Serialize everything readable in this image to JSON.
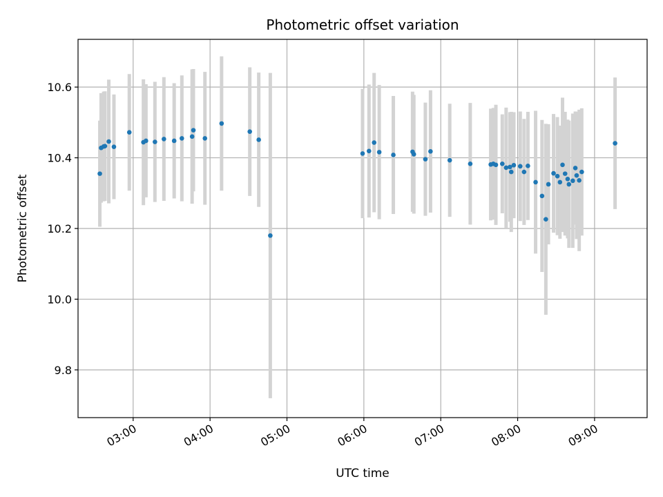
{
  "chart_data": {
    "type": "scatter",
    "title": "Photometric offset variation",
    "xlabel": "UTC time",
    "ylabel": "Photometric offset",
    "grid": true,
    "xlim": [
      "02:17",
      "09:41"
    ],
    "ylim": [
      9.665,
      10.735
    ],
    "x_ticks": [
      "03:00",
      "04:00",
      "05:00",
      "06:00",
      "07:00",
      "08:00",
      "09:00"
    ],
    "y_ticks": [
      9.8,
      10.0,
      10.2,
      10.4,
      10.6
    ],
    "y_tick_labels": [
      "9.8",
      "10.0",
      "10.2",
      "10.4",
      "10.6"
    ],
    "colors": {
      "points": "#1f77b4",
      "errorbars": "#d3d3d3",
      "grid": "#b0b0b0"
    },
    "series": [
      {
        "x": [
          "02:34",
          "02:35",
          "02:37",
          "02:38",
          "02:41",
          "02:45",
          "02:57",
          "03:08",
          "03:10",
          "03:17",
          "03:24",
          "03:32",
          "03:38",
          "03:46",
          "03:47",
          "03:56",
          "04:09",
          "04:31",
          "04:38",
          "04:47",
          "05:59",
          "06:04",
          "06:08",
          "06:12",
          "06:23",
          "06:38",
          "06:39",
          "06:48",
          "06:52",
          "07:07",
          "07:23",
          "07:39",
          "07:41",
          "07:43",
          "07:48",
          "07:51",
          "07:54",
          "07:55",
          "07:57",
          "08:02",
          "08:05",
          "08:08",
          "08:14",
          "08:19",
          "08:22",
          "08:24",
          "08:28",
          "08:31",
          "08:33",
          "08:35",
          "08:37",
          "08:39",
          "08:40",
          "08:43",
          "08:45",
          "08:46",
          "08:48",
          "08:50",
          "09:16"
        ],
        "y": [
          10.355,
          10.428,
          10.432,
          10.433,
          10.446,
          10.431,
          10.472,
          10.444,
          10.448,
          10.445,
          10.453,
          10.448,
          10.455,
          10.46,
          10.478,
          10.455,
          10.497,
          10.474,
          10.451,
          10.18,
          10.412,
          10.419,
          10.443,
          10.416,
          10.408,
          10.417,
          10.41,
          10.396,
          10.418,
          10.393,
          10.383,
          10.381,
          10.383,
          10.38,
          10.383,
          10.372,
          10.374,
          10.36,
          10.379,
          10.376,
          10.36,
          10.377,
          10.331,
          10.292,
          10.226,
          10.325,
          10.356,
          10.348,
          10.331,
          10.38,
          10.355,
          10.34,
          10.325,
          10.335,
          10.371,
          10.35,
          10.336,
          10.36,
          10.441
        ],
        "yerr": [
          0.15,
          0.155,
          0.155,
          0.155,
          0.175,
          0.148,
          0.165,
          0.178,
          0.16,
          0.17,
          0.175,
          0.163,
          0.178,
          0.19,
          0.173,
          0.188,
          0.19,
          0.182,
          0.19,
          0.46,
          0.183,
          0.188,
          0.197,
          0.19,
          0.167,
          0.17,
          0.168,
          0.16,
          0.173,
          0.16,
          0.172,
          0.158,
          0.158,
          0.17,
          0.14,
          0.17,
          0.155,
          0.17,
          0.15,
          0.155,
          0.15,
          0.153,
          0.202,
          0.215,
          0.27,
          0.17,
          0.168,
          0.167,
          0.16,
          0.19,
          0.175,
          0.168,
          0.18,
          0.19,
          0.16,
          0.18,
          0.2,
          0.18,
          0.186
        ]
      }
    ]
  }
}
